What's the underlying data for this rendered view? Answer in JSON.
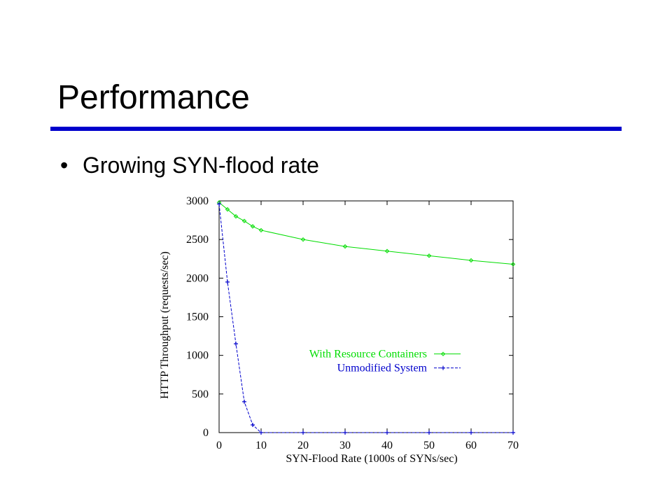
{
  "slide": {
    "title": "Performance",
    "bullet_symbol": "•",
    "bullet_text": "Growing SYN-flood rate",
    "rule_color": "#0000cc"
  },
  "chart_data": {
    "type": "line",
    "title": "",
    "xlabel": "SYN-Flood Rate (1000s of SYNs/sec)",
    "ylabel": "HTTP Throughput (requests/sec)",
    "xlim": [
      0,
      70
    ],
    "ylim": [
      0,
      3000
    ],
    "xticks": [
      0,
      10,
      20,
      30,
      40,
      50,
      60,
      70
    ],
    "yticks": [
      0,
      500,
      1000,
      1500,
      2000,
      2500,
      3000
    ],
    "grid": false,
    "legend_position": "right",
    "series": [
      {
        "name": "With Resource Containers",
        "color": "#00dd00",
        "line_style": "solid",
        "marker": "diamond",
        "x": [
          0,
          2,
          4,
          6,
          8,
          10,
          20,
          30,
          40,
          50,
          60,
          70
        ],
        "y": [
          2980,
          2890,
          2800,
          2740,
          2670,
          2620,
          2500,
          2410,
          2350,
          2290,
          2230,
          2180
        ]
      },
      {
        "name": "Unmodified System",
        "color": "#0000cc",
        "line_style": "dashed",
        "marker": "plus",
        "x": [
          0,
          2,
          4,
          6,
          8,
          10,
          20,
          30,
          40,
          50,
          60,
          70
        ],
        "y": [
          2960,
          1950,
          1150,
          400,
          100,
          0,
          0,
          0,
          0,
          0,
          0,
          0
        ]
      }
    ]
  }
}
